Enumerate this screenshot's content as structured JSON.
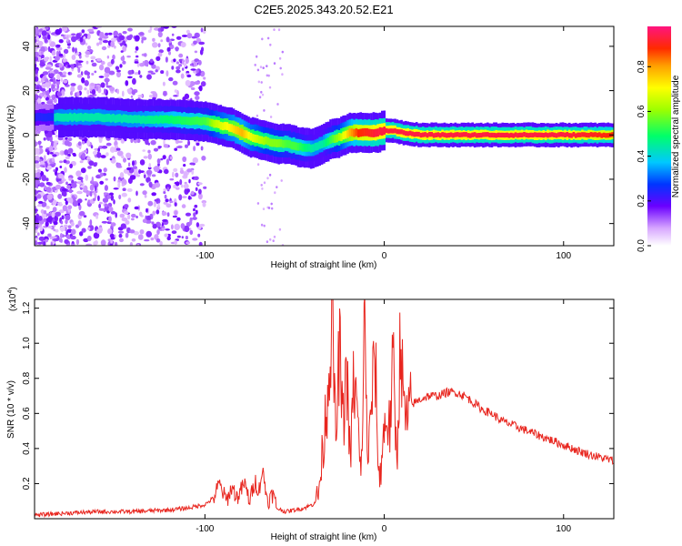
{
  "figure": {
    "title": "C2E5.2025.343.20.52.E21"
  },
  "chart_data": [
    {
      "type": "heatmap",
      "title": "C2E5.2025.343.20.52.E21",
      "xlabel": "Height of straight line (km)",
      "ylabel": "Frequency (Hz)",
      "xlim": [
        -195,
        128
      ],
      "ylim": [
        -50,
        49
      ],
      "xticks": [
        -100,
        0,
        100
      ],
      "yticks": [
        -40,
        -20,
        0,
        20,
        40
      ],
      "colorbar": {
        "label": "Normalized spectral amplitude",
        "range": [
          0,
          0.98
        ],
        "ticks": [
          "0.0",
          "0.2",
          "0.4",
          "0.6",
          "0.8"
        ],
        "tick_values": [
          0,
          0.2,
          0.4,
          0.6,
          0.8
        ]
      },
      "ridge": {
        "x": [
          -195,
          -180,
          -160,
          -140,
          -120,
          -100,
          -95,
          -90,
          -85,
          -80,
          -75,
          -70,
          -65,
          -60,
          -55,
          -50,
          -45,
          -40,
          -35,
          -30,
          -25,
          -20,
          -15,
          -10,
          -5,
          0,
          5,
          10,
          20,
          40,
          60,
          80,
          100,
          128
        ],
        "freq": [
          8,
          8,
          8,
          7,
          7,
          6,
          5,
          4,
          3,
          1,
          -1,
          -2,
          -3,
          -4,
          -4,
          -5,
          -6,
          -6,
          -4,
          -2,
          -1,
          1,
          1,
          1,
          1,
          2,
          2,
          1,
          0,
          0,
          0,
          0,
          0,
          0
        ],
        "amplitude": [
          0.4,
          0.45,
          0.45,
          0.45,
          0.5,
          0.55,
          0.65,
          0.7,
          0.75,
          0.8,
          0.7,
          0.65,
          0.6,
          0.6,
          0.55,
          0.55,
          0.5,
          0.45,
          0.45,
          0.55,
          0.65,
          0.8,
          0.9,
          0.92,
          0.95,
          0.95,
          0.95,
          0.95,
          0.95,
          0.95,
          0.95,
          0.95,
          0.95,
          0.9
        ]
      }
    },
    {
      "type": "line",
      "xlabel": "Height of straight line (km)",
      "ylabel": "SNR (10 * v/v)",
      "y_multiplier": "(x10",
      "y_multiplier_exp": "4",
      "y_multiplier_close": ")",
      "xlim": [
        -195,
        128
      ],
      "ylim": [
        0,
        1.25
      ],
      "xticks": [
        -100,
        0,
        100
      ],
      "yticks": [
        0.2,
        0.4,
        0.6,
        0.8,
        1.0,
        1.2
      ],
      "line_color": "#e8261f",
      "series": [
        {
          "x": [
            -195,
            -180,
            -160,
            -140,
            -120,
            -110,
            -105,
            -100,
            -95,
            -92,
            -88,
            -85,
            -82,
            -78,
            -75,
            -72,
            -70,
            -68,
            -65,
            -62,
            -60,
            -55,
            -50,
            -45,
            -40,
            -37,
            -35,
            -33,
            -31,
            -29,
            -27,
            -25,
            -23,
            -21,
            -19,
            -17,
            -15,
            -13,
            -11,
            -9,
            -7,
            -5,
            -3,
            -1,
            1,
            3,
            5,
            7,
            9,
            11,
            13,
            15,
            20,
            25,
            30,
            35,
            40,
            45,
            50,
            55,
            60,
            65,
            70,
            80,
            90,
            100,
            110,
            120,
            128
          ],
          "y": [
            0.02,
            0.03,
            0.04,
            0.04,
            0.05,
            0.06,
            0.07,
            0.08,
            0.12,
            0.2,
            0.1,
            0.18,
            0.12,
            0.2,
            0.1,
            0.22,
            0.15,
            0.28,
            0.1,
            0.14,
            0.06,
            0.04,
            0.05,
            0.06,
            0.08,
            0.12,
            0.3,
            0.55,
            0.8,
            1.22,
            0.4,
            1.0,
            0.5,
            0.9,
            0.3,
            0.8,
            0.6,
            0.2,
            1.12,
            0.3,
            0.7,
            0.9,
            0.2,
            0.4,
            0.6,
            0.5,
            0.9,
            0.3,
            1.05,
            0.6,
            0.55,
            0.65,
            0.68,
            0.7,
            0.7,
            0.72,
            0.72,
            0.7,
            0.66,
            0.62,
            0.6,
            0.56,
            0.54,
            0.5,
            0.46,
            0.42,
            0.38,
            0.35,
            0.33
          ]
        }
      ]
    }
  ]
}
